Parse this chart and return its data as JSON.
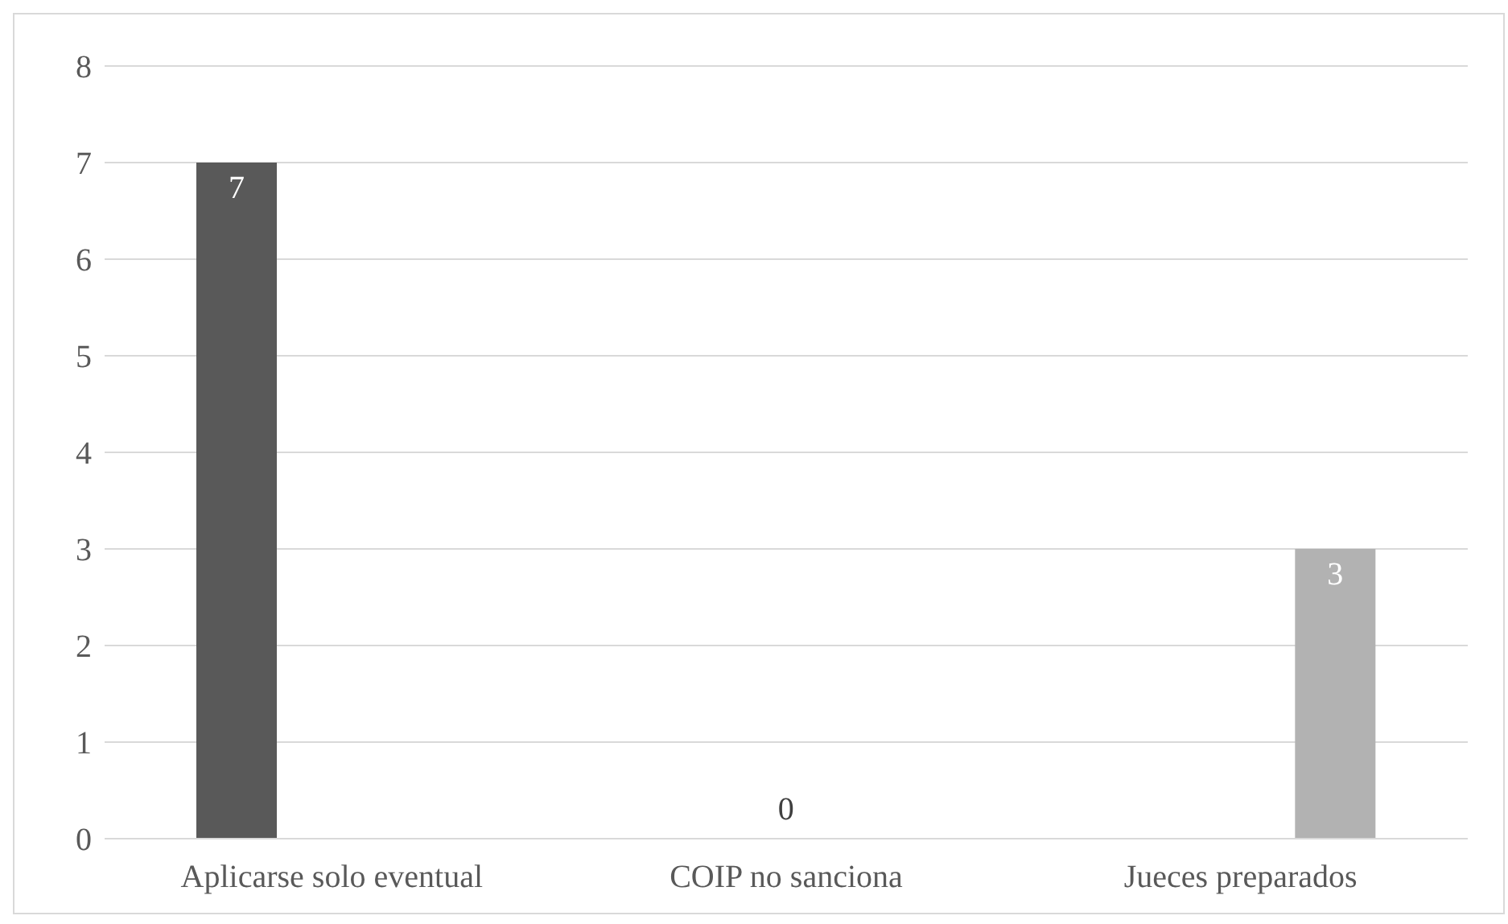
{
  "chart_data": {
    "type": "bar",
    "categories": [
      "Aplicarse solo eventual",
      "COIP no sanciona",
      "Jueces preparados"
    ],
    "series": [
      {
        "color": "#595959",
        "values": [
          7,
          null,
          null
        ]
      },
      {
        "color": "#7f7f7f",
        "values": [
          null,
          0,
          null
        ]
      },
      {
        "color": "#b2b2b2",
        "values": [
          null,
          null,
          3
        ]
      }
    ],
    "ylim": [
      0,
      8
    ],
    "yticks": [
      0,
      1,
      2,
      3,
      4,
      5,
      6,
      7,
      8
    ],
    "grid": "y",
    "data_labels": true,
    "legend": false
  }
}
